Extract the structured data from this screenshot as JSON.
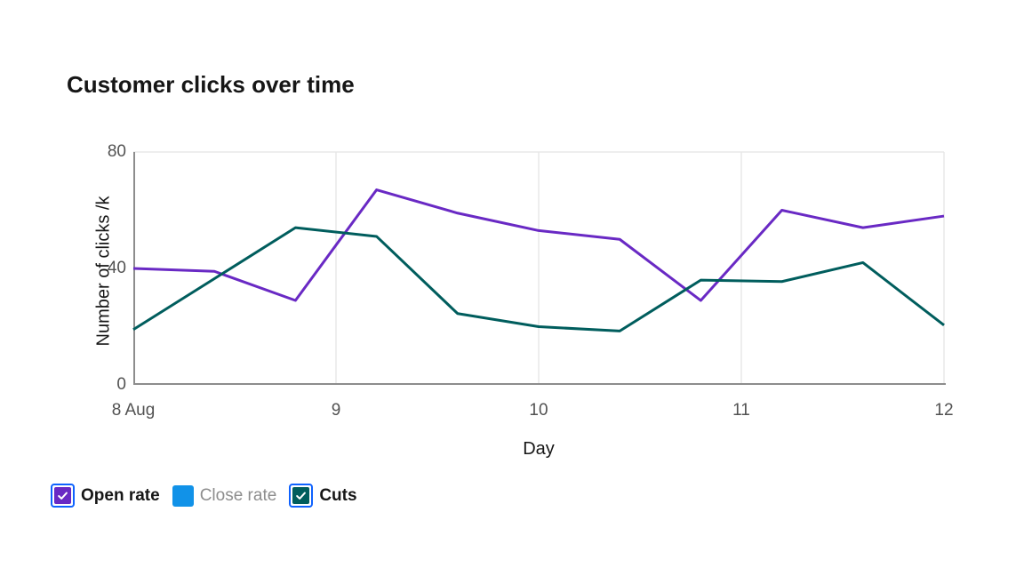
{
  "title": "Customer clicks over time",
  "legend": {
    "items": [
      {
        "label": "Open rate",
        "color": "#6929c4",
        "checked": true
      },
      {
        "label": "Close rate",
        "color": "#1192e8",
        "checked": false
      },
      {
        "label": "Cuts",
        "color": "#005d5d",
        "checked": true
      }
    ],
    "checkbox_border_color": "#0f62fe",
    "checkmark_color": "#ffffff"
  },
  "chart_data": {
    "type": "line",
    "title": "Customer clicks over time",
    "xlabel": "Day",
    "ylabel": "Number of clicks /k",
    "x_tick_labels": [
      "8 Aug",
      "9",
      "10",
      "11",
      "12"
    ],
    "x_tick_values": [
      8,
      9,
      10,
      11,
      12
    ],
    "y_tick_labels": [
      "0",
      "40",
      "80"
    ],
    "y_tick_values": [
      0,
      40,
      80
    ],
    "xlim": [
      8,
      12
    ],
    "ylim": [
      0,
      80
    ],
    "x": [
      8,
      8.4,
      8.8,
      9.2,
      9.6,
      10,
      10.4,
      10.8,
      11.2,
      11.6,
      12
    ],
    "series": [
      {
        "name": "Open rate",
        "color": "#6929c4",
        "visible": true,
        "values": [
          40,
          39,
          29,
          67,
          59,
          53,
          50,
          29,
          60,
          54,
          58
        ]
      },
      {
        "name": "Close rate",
        "color": "#1192e8",
        "visible": false,
        "values": []
      },
      {
        "name": "Cuts",
        "color": "#005d5d",
        "visible": true,
        "values": [
          19,
          36.5,
          54,
          51,
          24.5,
          20,
          18.5,
          36,
          35.5,
          42,
          20.5
        ]
      }
    ],
    "grid": {
      "vertical_gridlines": true,
      "top_gridline": true,
      "legend_position": "bottom"
    },
    "axis_color": "#8d8d8d",
    "gridline_color": "#e8e8e8",
    "tick_label_color": "#525252",
    "axis_title_color": "#161616"
  }
}
